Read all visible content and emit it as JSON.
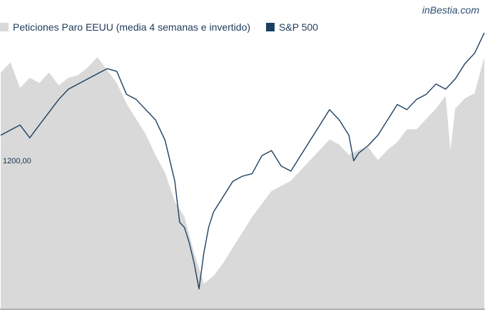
{
  "brand": "inBestia.com",
  "chart_data": {
    "type": "area",
    "title": "",
    "xlabel": "",
    "ylabel": "",
    "y_tick_labels": [
      "1200,00"
    ],
    "legend_placement": "top-left",
    "grid": false,
    "colors": {
      "claims": "#d9d9d9",
      "sp500": "#1e4060",
      "legend_text": "#1f3b5a"
    },
    "series": [
      {
        "name": "Peticiones Paro EEUU (media 4 semanas e invertido)",
        "kind": "area",
        "x": [
          0,
          0.02,
          0.04,
          0.06,
          0.08,
          0.1,
          0.12,
          0.14,
          0.16,
          0.18,
          0.2,
          0.22,
          0.24,
          0.26,
          0.28,
          0.3,
          0.32,
          0.34,
          0.36,
          0.38,
          0.4,
          0.42,
          0.44,
          0.46,
          0.48,
          0.5,
          0.52,
          0.54,
          0.56,
          0.58,
          0.6,
          0.62,
          0.64,
          0.66,
          0.68,
          0.7,
          0.72,
          0.74,
          0.76,
          0.78,
          0.8,
          0.82,
          0.84,
          0.86,
          0.88,
          0.9,
          0.92,
          0.93,
          0.94,
          0.96,
          0.98,
          1.0
        ],
        "values": [
          0.84,
          0.88,
          0.78,
          0.82,
          0.8,
          0.84,
          0.79,
          0.82,
          0.83,
          0.86,
          0.9,
          0.85,
          0.8,
          0.72,
          0.66,
          0.6,
          0.52,
          0.45,
          0.34,
          0.28,
          0.14,
          0.02,
          0.05,
          0.1,
          0.16,
          0.22,
          0.28,
          0.33,
          0.38,
          0.4,
          0.42,
          0.46,
          0.5,
          0.54,
          0.58,
          0.56,
          0.52,
          0.54,
          0.55,
          0.5,
          0.54,
          0.57,
          0.62,
          0.62,
          0.66,
          0.7,
          0.75,
          0.54,
          0.7,
          0.74,
          0.76,
          0.9
        ]
      },
      {
        "name": "S&P 500",
        "kind": "line",
        "x": [
          0,
          0.02,
          0.04,
          0.06,
          0.08,
          0.1,
          0.12,
          0.14,
          0.16,
          0.18,
          0.19,
          0.2,
          0.22,
          0.24,
          0.26,
          0.28,
          0.3,
          0.32,
          0.34,
          0.36,
          0.37,
          0.38,
          0.39,
          0.4,
          0.41,
          0.42,
          0.43,
          0.44,
          0.46,
          0.48,
          0.5,
          0.52,
          0.54,
          0.56,
          0.58,
          0.6,
          0.62,
          0.64,
          0.66,
          0.68,
          0.7,
          0.72,
          0.73,
          0.74,
          0.76,
          0.78,
          0.8,
          0.82,
          0.84,
          0.86,
          0.88,
          0.9,
          0.92,
          0.94,
          0.96,
          0.98,
          1.0
        ],
        "values": [
          0.6,
          0.62,
          0.64,
          0.59,
          0.64,
          0.69,
          0.74,
          0.78,
          0.8,
          0.82,
          0.83,
          0.84,
          0.86,
          0.85,
          0.76,
          0.74,
          0.7,
          0.66,
          0.58,
          0.42,
          0.26,
          0.24,
          0.18,
          0.1,
          0.0,
          0.14,
          0.24,
          0.3,
          0.36,
          0.42,
          0.44,
          0.45,
          0.52,
          0.54,
          0.48,
          0.46,
          0.52,
          0.58,
          0.64,
          0.7,
          0.66,
          0.6,
          0.5,
          0.53,
          0.56,
          0.6,
          0.66,
          0.72,
          0.7,
          0.74,
          0.76,
          0.8,
          0.78,
          0.82,
          0.88,
          0.92,
          1.0
        ]
      }
    ]
  }
}
